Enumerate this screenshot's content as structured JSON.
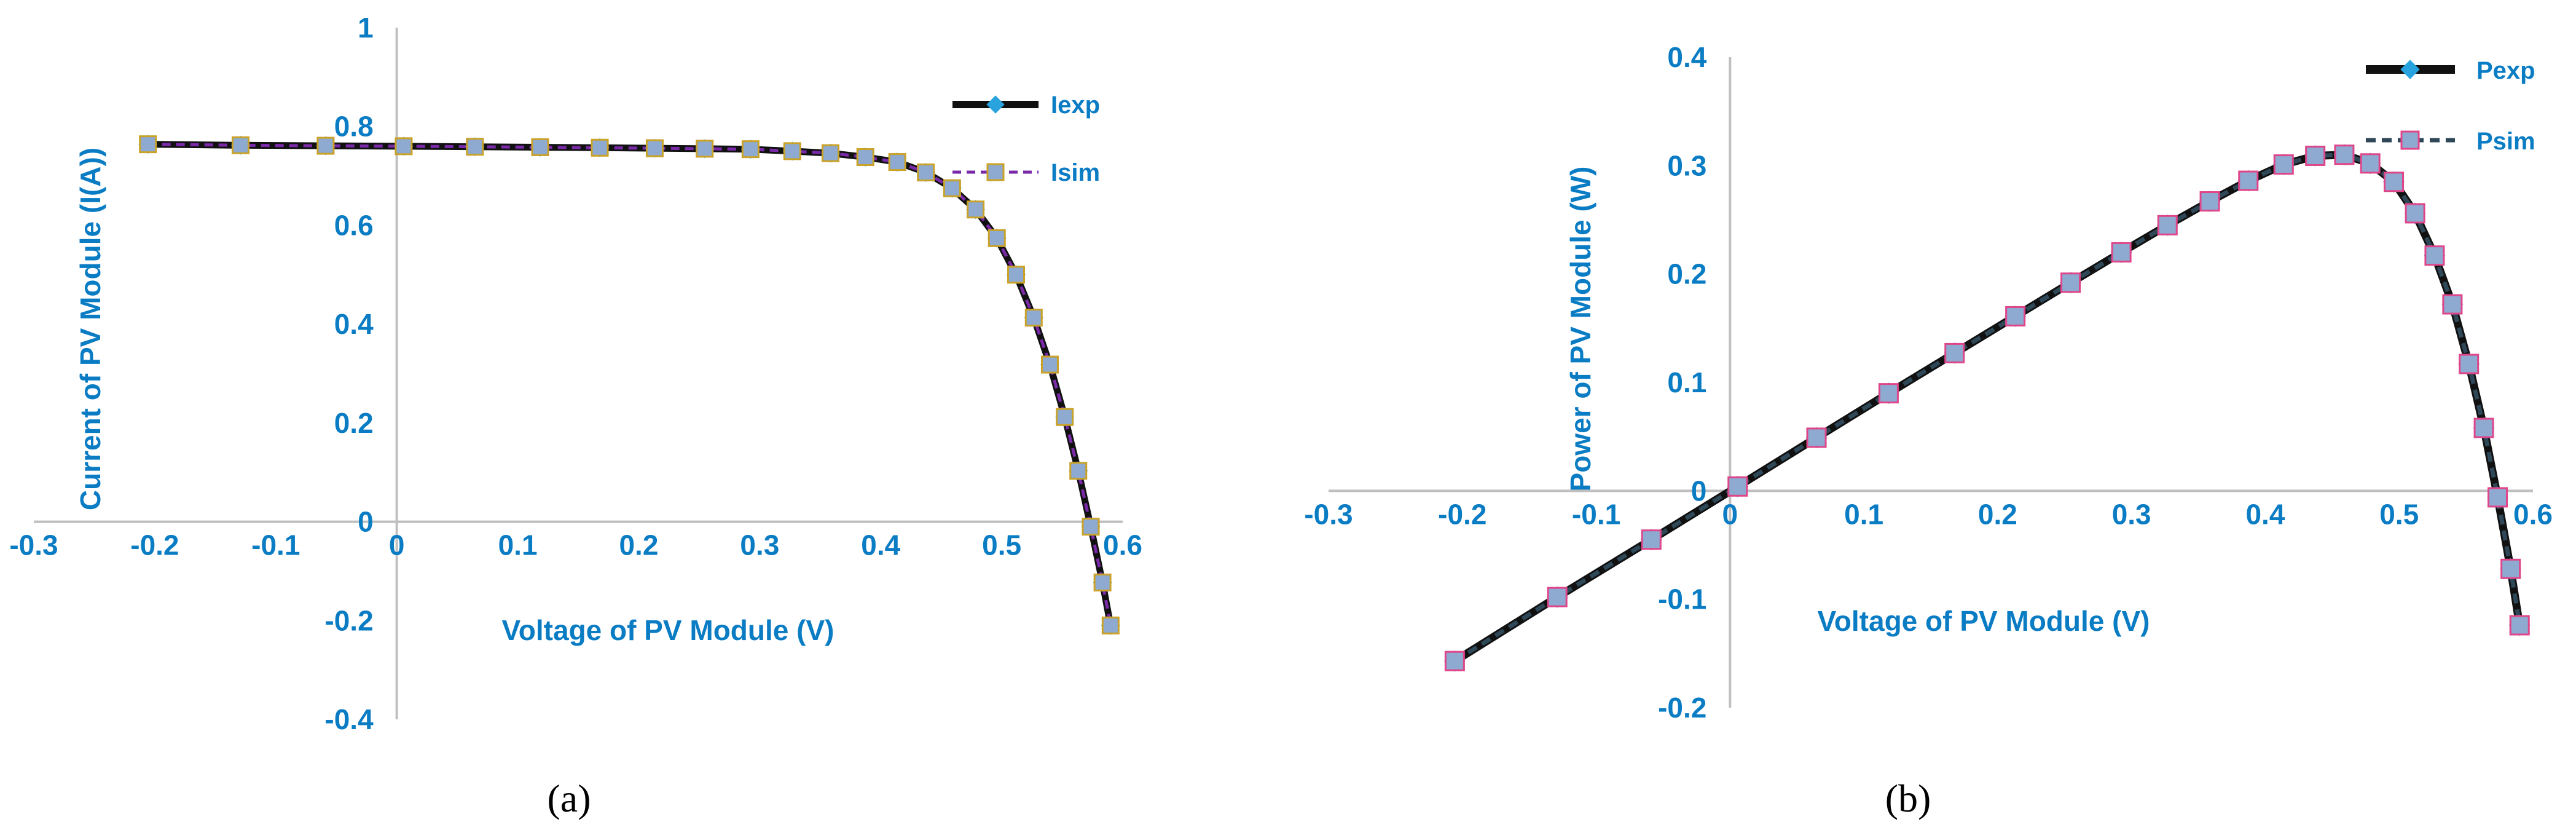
{
  "colors": {
    "axis_text": "#0A7CC4",
    "axis_line": "#BFBFBF",
    "exp_line": "#111111",
    "exp_marker": "#29A3DE",
    "isim_line": "#7A2AA8",
    "psim_line": "#2F4858",
    "sim_marker_fill": "#8EAAD0",
    "isim_marker_edge": "#C9A227",
    "psim_marker_edge": "#E0458A"
  },
  "panels": [
    {
      "caption": "(a)",
      "legend": [
        "Iexp",
        "Isim"
      ]
    },
    {
      "caption": "(b)",
      "legend": [
        "Pexp",
        "Psim"
      ]
    }
  ],
  "chart_data": [
    {
      "type": "line",
      "title": "",
      "xlabel": "Voltage of PV Module (V)",
      "ylabel": "Current of PV Module (I(A))",
      "xlim": [
        -0.3,
        0.6
      ],
      "ylim": [
        -0.4,
        1.0
      ],
      "xticks": [
        "-0.3",
        "-0.2",
        "-0.1",
        "0",
        "0.1",
        "0.2",
        "0.3",
        "0.4",
        "0.5",
        "0.6"
      ],
      "yticks": [
        "-0.4",
        "-0.2",
        "0",
        "0.2",
        "0.4",
        "0.6",
        "0.8",
        "1"
      ],
      "legend_position": "right",
      "x": [
        -0.2057,
        -0.1291,
        -0.0588,
        0.0057,
        0.0646,
        0.1185,
        0.1678,
        0.2132,
        0.2545,
        0.2924,
        0.3269,
        0.3585,
        0.3873,
        0.4137,
        0.4373,
        0.459,
        0.4784,
        0.496,
        0.5119,
        0.5265,
        0.5398,
        0.5521,
        0.5633,
        0.5736,
        0.5833,
        0.59
      ],
      "series": [
        {
          "name": "Iexp",
          "values": [
            0.764,
            0.762,
            0.761,
            0.76,
            0.759,
            0.758,
            0.757,
            0.756,
            0.755,
            0.754,
            0.75,
            0.746,
            0.738,
            0.728,
            0.707,
            0.675,
            0.632,
            0.574,
            0.5,
            0.413,
            0.318,
            0.212,
            0.103,
            -0.01,
            -0.123,
            -0.21
          ]
        },
        {
          "name": "Isim",
          "values": [
            0.764,
            0.762,
            0.761,
            0.76,
            0.759,
            0.758,
            0.757,
            0.756,
            0.755,
            0.754,
            0.75,
            0.746,
            0.738,
            0.728,
            0.707,
            0.675,
            0.632,
            0.574,
            0.5,
            0.413,
            0.318,
            0.212,
            0.103,
            -0.01,
            -0.123,
            -0.21
          ]
        }
      ]
    },
    {
      "type": "line",
      "title": "",
      "xlabel": "Voltage of PV Module (V)",
      "ylabel": "Power of PV Module (W)",
      "xlim": [
        -0.3,
        0.6
      ],
      "ylim": [
        -0.2,
        0.4
      ],
      "xticks": [
        "-0.3",
        "-0.2",
        "-0.1",
        "0",
        "0.1",
        "0.2",
        "0.3",
        "0.4",
        "0.5",
        "0.6"
      ],
      "yticks": [
        "-0.2",
        "-0.1",
        "0",
        "0.1",
        "0.2",
        "0.3",
        "0.4"
      ],
      "legend_position": "top-right",
      "x": [
        -0.2057,
        -0.1291,
        -0.0588,
        0.0057,
        0.0646,
        0.1185,
        0.1678,
        0.2132,
        0.2545,
        0.2924,
        0.3269,
        0.3585,
        0.3873,
        0.4137,
        0.4373,
        0.459,
        0.4784,
        0.496,
        0.5119,
        0.5265,
        0.5398,
        0.5521,
        0.5633,
        0.5736,
        0.5833,
        0.59
      ],
      "series": [
        {
          "name": "Pexp",
          "values": [
            -0.157,
            -0.098,
            -0.045,
            0.004,
            0.049,
            0.09,
            0.127,
            0.161,
            0.192,
            0.22,
            0.245,
            0.267,
            0.286,
            0.301,
            0.309,
            0.31,
            0.302,
            0.285,
            0.256,
            0.217,
            0.172,
            0.117,
            0.058,
            -0.006,
            -0.072,
            -0.124
          ]
        },
        {
          "name": "Psim",
          "values": [
            -0.157,
            -0.098,
            -0.045,
            0.004,
            0.049,
            0.09,
            0.127,
            0.161,
            0.192,
            0.22,
            0.245,
            0.267,
            0.286,
            0.301,
            0.309,
            0.31,
            0.302,
            0.285,
            0.256,
            0.217,
            0.172,
            0.117,
            0.058,
            -0.006,
            -0.072,
            -0.124
          ]
        }
      ]
    }
  ]
}
